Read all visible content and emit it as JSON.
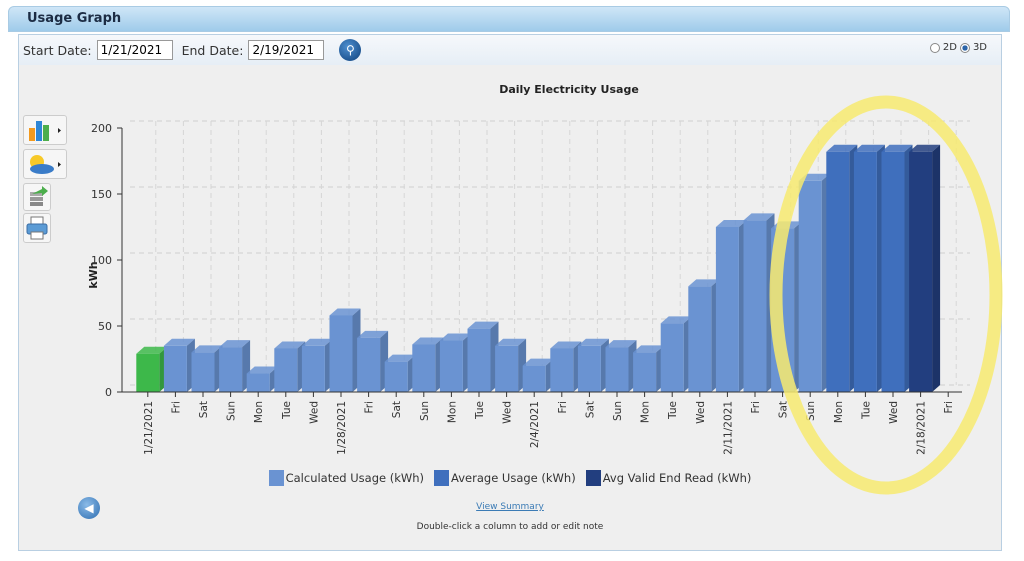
{
  "window": {
    "title": "Usage Graph"
  },
  "toolbar": {
    "start_label": "Start Date:",
    "start_value": "1/21/2021",
    "end_label": "End Date:",
    "end_value": "2/19/2021",
    "mode_2d": "2D",
    "mode_3d": "3D",
    "selected_mode": "3D"
  },
  "side_tools": [
    "chart-type-icon",
    "weather-icon",
    "export-icon",
    "print-icon"
  ],
  "footer": {
    "view_summary": "View Summary",
    "note": "Double-click a column to add or edit note"
  },
  "colors": {
    "calculated": "#6a93d2",
    "average": "#3f6fbd",
    "end_read": "#223e7f",
    "first": "#3db84a"
  },
  "chart_data": {
    "type": "bar",
    "title": "Daily Electricity Usage",
    "ylabel": "kWh",
    "xlabel": "",
    "ylim": [
      0,
      200
    ],
    "yticks": [
      0,
      50,
      100,
      150,
      200
    ],
    "grid": true,
    "legend_position": "bottom",
    "categories": [
      "1/21/2021",
      "Fri",
      "Sat",
      "Sun",
      "Mon",
      "Tue",
      "Wed",
      "1/28/2021",
      "Fri",
      "Sat",
      "Sun",
      "Mon",
      "Tue",
      "Wed",
      "2/4/2021",
      "Fri",
      "Sat",
      "Sun",
      "Mon",
      "Tue",
      "Wed",
      "2/11/2021",
      "Fri",
      "Sat",
      "Sun",
      "Mon",
      "Tue",
      "Wed",
      "2/18/2021",
      "Fri"
    ],
    "values": [
      29,
      35,
      30,
      34,
      14,
      33,
      35,
      58,
      41,
      23,
      36,
      39,
      48,
      35,
      20,
      33,
      35,
      34,
      30,
      52,
      80,
      125,
      130,
      124,
      160,
      182,
      182,
      182,
      182,
      null
    ],
    "series_of_bar": [
      "first",
      "calculated",
      "calculated",
      "calculated",
      "calculated",
      "calculated",
      "calculated",
      "calculated",
      "calculated",
      "calculated",
      "calculated",
      "calculated",
      "calculated",
      "calculated",
      "calculated",
      "calculated",
      "calculated",
      "calculated",
      "calculated",
      "calculated",
      "calculated",
      "calculated",
      "calculated",
      "calculated",
      "calculated",
      "average",
      "average",
      "average",
      "end_read",
      null
    ],
    "legend": [
      {
        "key": "calculated",
        "label": "Calculated Usage (kWh)"
      },
      {
        "key": "average",
        "label": "Average Usage (kWh)"
      },
      {
        "key": "end_read",
        "label": "Avg Valid End Read (kWh)"
      }
    ],
    "annotation": "highlight-ellipse"
  }
}
